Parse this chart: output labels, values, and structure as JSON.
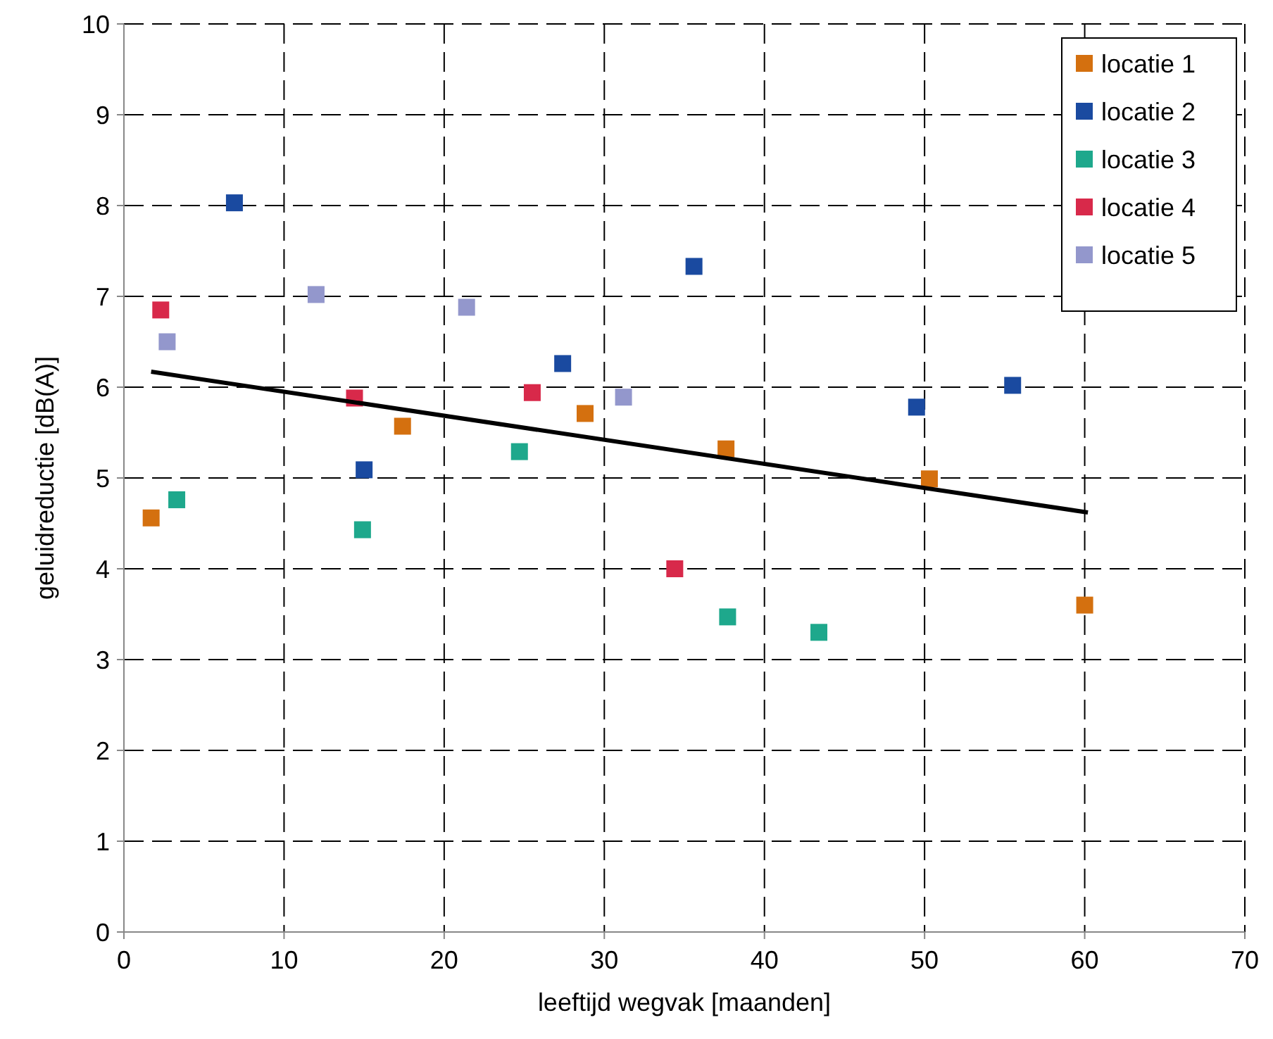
{
  "chart_data": {
    "type": "scatter",
    "xlabel": "leeftijd wegvak [maanden]",
    "ylabel": "geluidreductie [dB(A)]",
    "xlim": [
      0,
      70
    ],
    "ylim": [
      0,
      10
    ],
    "xticks": [
      0,
      10,
      20,
      30,
      40,
      50,
      60,
      70
    ],
    "yticks": [
      0,
      1,
      2,
      3,
      4,
      5,
      6,
      7,
      8,
      9,
      10
    ],
    "grid": true,
    "legend": "top right",
    "marker": "square",
    "series": [
      {
        "name": "locatie 1",
        "color": "#d4700f",
        "x": [
          1.7,
          17.4,
          28.8,
          37.6,
          50.3,
          60.0
        ],
        "values": [
          4.56,
          5.57,
          5.71,
          5.32,
          4.99,
          3.6
        ]
      },
      {
        "name": "locatie 2",
        "color": "#1a4aa0",
        "x": [
          6.9,
          15.0,
          27.4,
          35.6,
          49.5,
          55.5
        ],
        "values": [
          8.03,
          5.09,
          6.26,
          7.33,
          5.78,
          6.02
        ]
      },
      {
        "name": "locatie 3",
        "color": "#1ea88c",
        "x": [
          3.3,
          14.9,
          24.7,
          37.7,
          43.4
        ],
        "values": [
          4.76,
          4.43,
          5.29,
          3.47,
          3.3
        ]
      },
      {
        "name": "locatie 4",
        "color": "#d8294a",
        "x": [
          2.3,
          14.4,
          25.5,
          34.4
        ],
        "values": [
          6.85,
          5.88,
          5.94,
          4.0
        ]
      },
      {
        "name": "locatie 5",
        "color": "#9397cc",
        "x": [
          2.7,
          12.0,
          21.4,
          31.2
        ],
        "values": [
          6.5,
          7.02,
          6.88,
          5.89
        ]
      },
      {
        "type": "line",
        "color": "#000000",
        "x": [
          1.7,
          60.2
        ],
        "values": [
          6.17,
          4.62
        ],
        "marker": "none"
      }
    ]
  }
}
